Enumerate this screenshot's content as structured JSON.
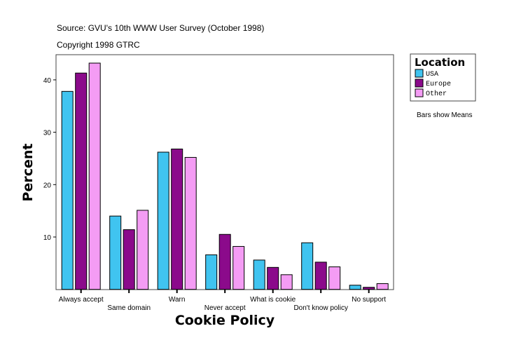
{
  "chart_data": {
    "type": "bar",
    "source": "Source: GVU's 10th WWW User Survey (October 1998)",
    "copyright": "Copyright 1998 GTRC",
    "xlabel": "Cookie Policy",
    "ylabel": "Percent",
    "ylim": [
      0,
      45
    ],
    "yticks": [
      10,
      20,
      30,
      40
    ],
    "categories": [
      "Always accept",
      "Same domain",
      "Warn",
      "Never accept",
      "What is cookie",
      "Don't know policy",
      "No support"
    ],
    "legend_title": "Location",
    "legend_position": "right",
    "note": "Bars show Means",
    "series": [
      {
        "name": "USA",
        "color": "#40c4f0",
        "values": [
          37.8,
          14.0,
          26.2,
          6.6,
          5.6,
          8.9,
          0.8
        ]
      },
      {
        "name": "Europe",
        "color": "#8b0a8b",
        "values": [
          41.3,
          11.4,
          26.8,
          10.5,
          4.2,
          5.2,
          0.4
        ]
      },
      {
        "name": "Other",
        "color": "#f49cf4",
        "values": [
          43.2,
          15.1,
          25.2,
          8.2,
          2.8,
          4.3,
          1.1
        ]
      }
    ]
  }
}
